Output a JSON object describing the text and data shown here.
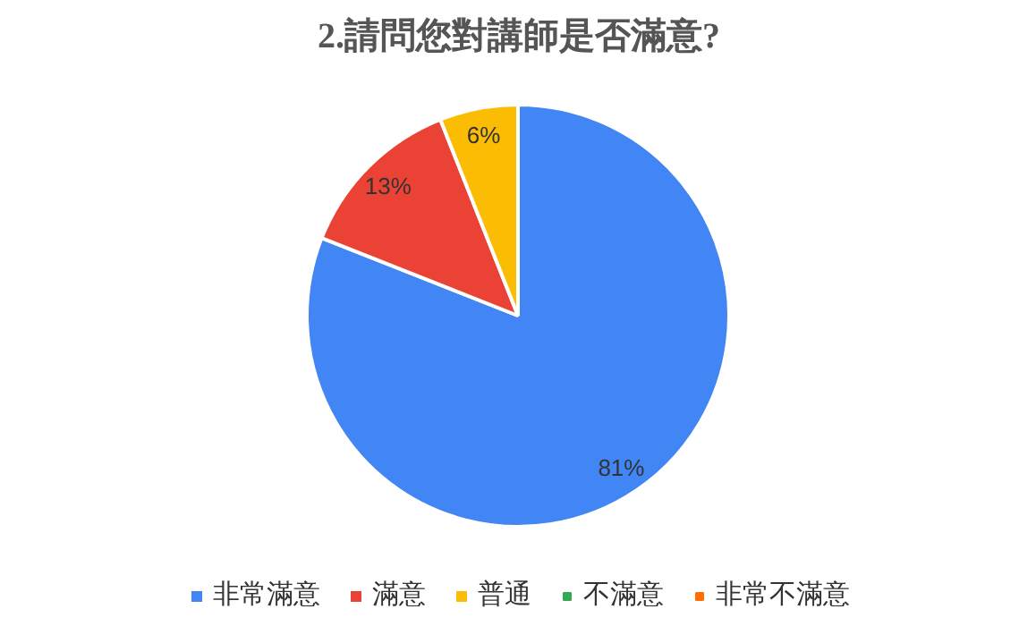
{
  "chart_data": {
    "type": "pie",
    "title": "2.請問您對講師是否滿意?",
    "categories": [
      "非常滿意",
      "滿意",
      "普通",
      "不滿意",
      "非常不滿意"
    ],
    "values": [
      81,
      13,
      6,
      0,
      0
    ],
    "colors": [
      "#4285f4",
      "#ea4335",
      "#fbbc04",
      "#34a853",
      "#ff6d01"
    ],
    "value_labels": [
      "81%",
      "13%",
      "6%",
      null,
      null
    ],
    "legend": "bottom"
  }
}
